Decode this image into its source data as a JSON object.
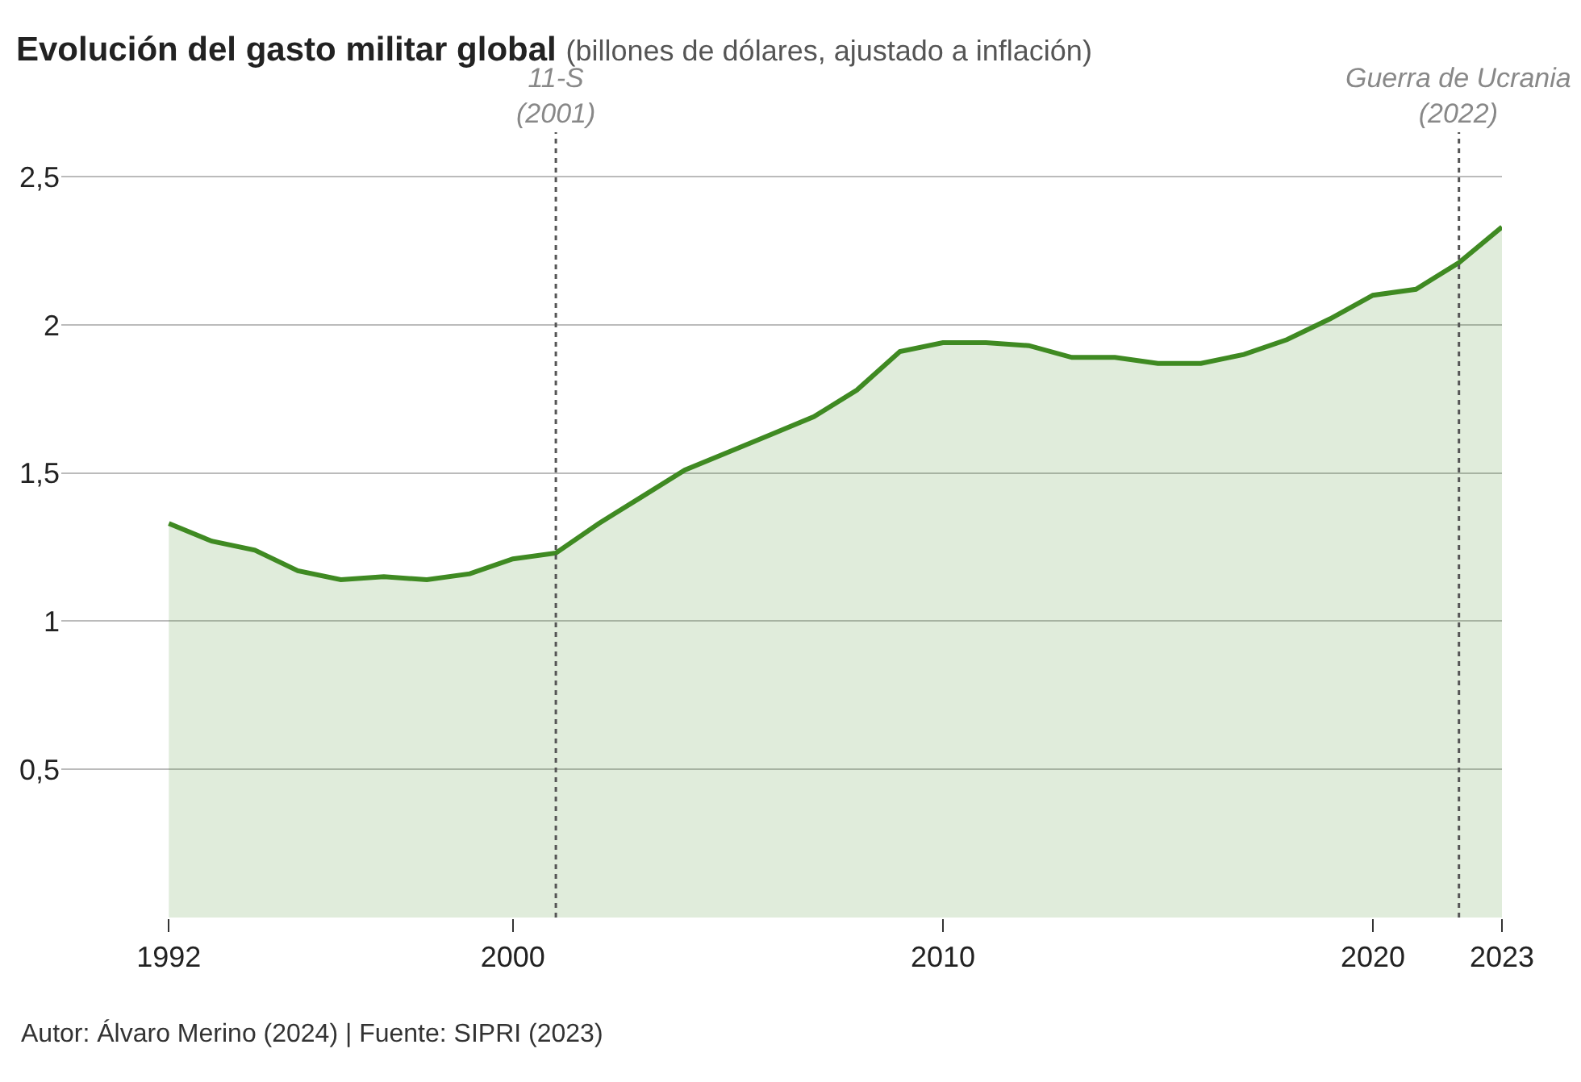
{
  "chart_data": {
    "type": "area",
    "title": "Evolución del gasto militar global",
    "subtitle": "(billones de dólares, ajustado a inflación)",
    "x": [
      1992,
      1993,
      1994,
      1995,
      1996,
      1997,
      1998,
      1999,
      2000,
      2001,
      2002,
      2003,
      2004,
      2005,
      2006,
      2007,
      2008,
      2009,
      2010,
      2011,
      2012,
      2013,
      2014,
      2015,
      2016,
      2017,
      2018,
      2019,
      2020,
      2021,
      2022,
      2023
    ],
    "series": [
      {
        "color": "#3f8a22",
        "values": [
          1.33,
          1.27,
          1.24,
          1.17,
          1.14,
          1.15,
          1.14,
          1.16,
          1.21,
          1.23,
          1.33,
          1.42,
          1.51,
          1.57,
          1.63,
          1.69,
          1.78,
          1.91,
          1.94,
          1.94,
          1.93,
          1.89,
          1.89,
          1.87,
          1.87,
          1.9,
          1.95,
          2.02,
          2.1,
          2.12,
          2.21,
          2.33
        ]
      }
    ],
    "xlim": [
      1989.5,
      2023
    ],
    "xticks": [
      1992,
      2000,
      2010,
      2020,
      2023
    ],
    "ylim": [
      0,
      2.65
    ],
    "yticks": [
      {
        "value": 0.5,
        "label": "0,5"
      },
      {
        "value": 1,
        "label": "1"
      },
      {
        "value": 1.5,
        "label": "1,5"
      },
      {
        "value": 2,
        "label": "2"
      },
      {
        "value": 2.5,
        "label": "2,5"
      }
    ],
    "grid": "y",
    "ref_lines": [
      {
        "axis": "x",
        "value": 2001,
        "label": "11-S\n(2001)",
        "color": "#555555",
        "line_style": "dotted"
      },
      {
        "axis": "x",
        "value": 2022,
        "label": "Guerra de Ucrania\n(2022)",
        "color": "#555555",
        "line_style": "dotted"
      }
    ],
    "annotations": [
      "Autor: Álvaro Merino (2024) | Fuente: SIPRI (2023)"
    ]
  }
}
